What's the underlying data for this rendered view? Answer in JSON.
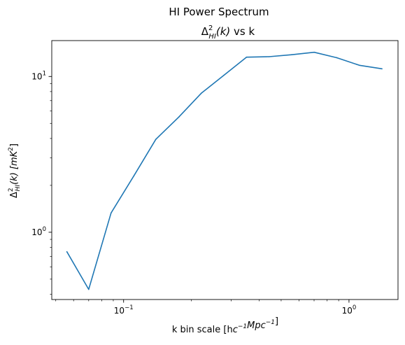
{
  "chart_data": {
    "type": "line",
    "suptitle": "HI Power Spectrum",
    "title": {
      "prefix": "Δ",
      "sup": "2",
      "sub": "HI",
      "mid": "(k)",
      "suffix": " vs k"
    },
    "xlabel": {
      "text": "k bin scale",
      "unit_parts": [
        {
          "t": "[h",
          "s": "normal"
        },
        {
          "t": "c",
          "s": "normal"
        },
        {
          "t": "−1",
          "s": "sup"
        },
        {
          "t": "Mpc",
          "s": "normal"
        },
        {
          "t": "−1",
          "s": "sup"
        },
        {
          "t": "]",
          "s": "normal"
        }
      ]
    },
    "ylabel": {
      "parts": [
        {
          "t": "Δ",
          "s": "normal"
        },
        {
          "t": "2",
          "s": "sup"
        },
        {
          "t": "HI",
          "s": "sub"
        },
        {
          "t": "(k) [mK",
          "s": "normal"
        },
        {
          "t": "2",
          "s": "sup"
        },
        {
          "t": "]",
          "s": "normal"
        }
      ]
    },
    "xscale": "log",
    "yscale": "log",
    "xlim": [
      0.048,
      1.65
    ],
    "ylim": [
      0.37,
      17.0
    ],
    "x_major_ticks": [
      {
        "value": 0.1,
        "base": "10",
        "exp": "−1"
      },
      {
        "value": 1.0,
        "base": "10",
        "exp": "0"
      }
    ],
    "y_major_ticks": [
      {
        "value": 1.0,
        "base": "10",
        "exp": "0"
      },
      {
        "value": 10.0,
        "base": "10",
        "exp": "1"
      }
    ],
    "grid": false,
    "series": [
      {
        "color": "#1f77b4",
        "x": [
          0.056,
          0.07,
          0.088,
          0.111,
          0.139,
          0.176,
          0.221,
          0.279,
          0.351,
          0.442,
          0.557,
          0.701,
          0.883,
          1.112,
          1.401
        ],
        "y": [
          0.75,
          0.43,
          1.33,
          2.3,
          3.95,
          5.5,
          7.8,
          10.2,
          13.3,
          13.4,
          13.8,
          14.3,
          13.2,
          11.8,
          11.2
        ]
      }
    ]
  }
}
